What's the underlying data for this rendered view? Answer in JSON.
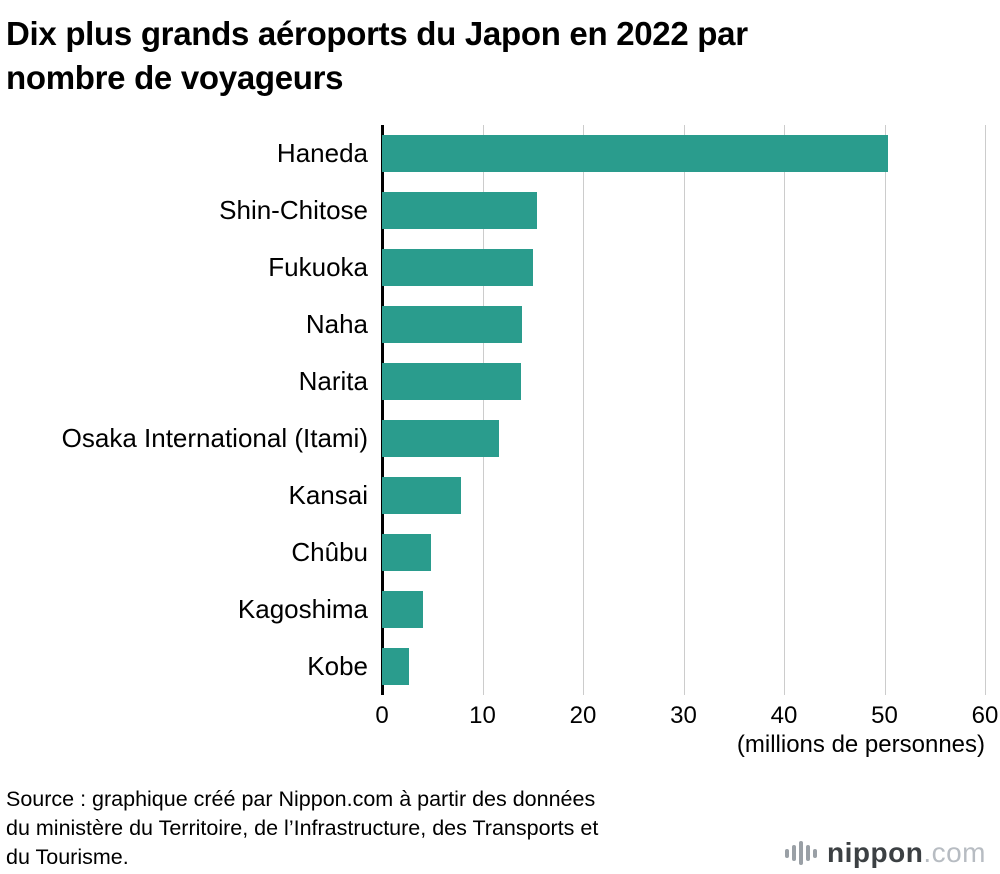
{
  "title": {
    "full": "Dix plus grands aéroports du Japon en 2022 par nombre de voyageurs",
    "line1": "Dix plus grands aéroports du Japon en 2022 par",
    "line2": "nombre de voyageurs"
  },
  "chart_data": {
    "type": "bar",
    "orientation": "horizontal",
    "title": "Dix plus grands aéroports du Japon en 2022 par nombre de voyageurs",
    "categories": [
      "Haneda",
      "Shin-Chitose",
      "Fukuoka",
      "Naha",
      "Narita",
      "Osaka International (Itami)",
      "Kansai",
      "Chûbu",
      "Kagoshima",
      "Kobe"
    ],
    "values": [
      50.3,
      15.4,
      15.0,
      13.9,
      13.8,
      11.6,
      7.9,
      4.9,
      4.1,
      2.7
    ],
    "xlabel": "(millions de personnes)",
    "xlim": [
      0,
      60
    ],
    "xticks": [
      0,
      10,
      20,
      30,
      40,
      50,
      60
    ],
    "bar_color": "#2a9c8d",
    "grid": true,
    "gridline_color": "#cccccc",
    "axis_color": "#000000",
    "legend": "none"
  },
  "footer": {
    "source_lines": [
      "Source : graphique créé par Nippon.com à partir des données",
      "du ministère du Territoire, de l’Infrastructure, des Transports et",
      "du Tourisme."
    ],
    "logo": {
      "name": "nippon",
      "suffix": ".com"
    }
  }
}
